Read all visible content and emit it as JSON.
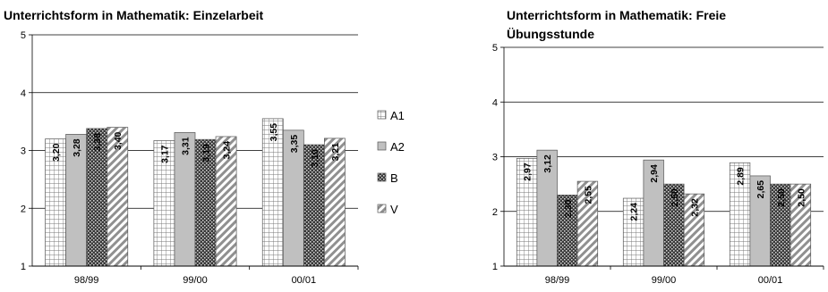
{
  "chart_data": [
    {
      "type": "bar",
      "title": "Unterrichtsform in Mathematik: Einzelarbeit",
      "categories": [
        "98/99",
        "99/00",
        "00/01"
      ],
      "ylim": [
        1,
        5
      ],
      "yticks": [
        "1",
        "2",
        "3",
        "4",
        "5"
      ],
      "grid": "horizontal",
      "legend": "right",
      "series": [
        {
          "name": "A1",
          "values": [
            3.2,
            3.17,
            3.55
          ],
          "labels": [
            "3,20",
            "3,17",
            "3,55"
          ],
          "pattern": "grid"
        },
        {
          "name": "A2",
          "values": [
            3.28,
            3.31,
            3.35
          ],
          "labels": [
            "3,28",
            "3,31",
            "3,35"
          ],
          "pattern": "solid"
        },
        {
          "name": "B",
          "values": [
            3.38,
            3.19,
            3.1
          ],
          "labels": [
            "3,38",
            "3,19",
            "3,10"
          ],
          "pattern": "dots"
        },
        {
          "name": "V",
          "values": [
            3.4,
            3.24,
            3.21
          ],
          "labels": [
            "3,40",
            "3,24",
            "3,21"
          ],
          "pattern": "diag"
        }
      ]
    },
    {
      "type": "bar",
      "title": "Unterrichtsform in Mathematik: Freie Übungsstunde",
      "title_lines": [
        "Unterrichtsform in Mathematik: Freie",
        "Übungsstunde"
      ],
      "categories": [
        "98/99",
        "99/00",
        "00/01"
      ],
      "ylim": [
        1,
        5
      ],
      "yticks": [
        "1",
        "2",
        "3",
        "4",
        "5"
      ],
      "grid": "horizontal",
      "legend": "none",
      "series": [
        {
          "name": "A1",
          "values": [
            2.97,
            2.24,
            2.89
          ],
          "labels": [
            "2,97",
            "2,24",
            "2,89"
          ],
          "pattern": "grid"
        },
        {
          "name": "A2",
          "values": [
            3.12,
            2.94,
            2.65
          ],
          "labels": [
            "3,12",
            "2,94",
            "2,65"
          ],
          "pattern": "solid"
        },
        {
          "name": "B",
          "values": [
            2.3,
            2.5,
            2.5
          ],
          "labels": [
            "2,30",
            "2,50",
            "2,50"
          ],
          "pattern": "dots"
        },
        {
          "name": "V",
          "values": [
            2.55,
            2.32,
            2.5
          ],
          "labels": [
            "2,55",
            "2,32",
            "2,50"
          ],
          "pattern": "diag"
        }
      ]
    }
  ]
}
